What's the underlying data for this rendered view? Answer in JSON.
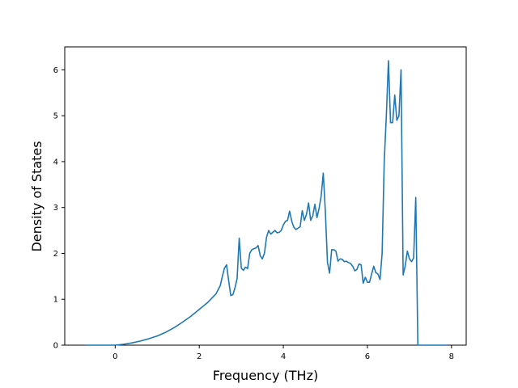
{
  "chart_data": {
    "type": "line",
    "title": "",
    "xlabel": "Frequency (THz)",
    "ylabel": "Density of States",
    "xlim": [
      -1.2,
      8.35
    ],
    "ylim": [
      0,
      6.5
    ],
    "xticks": [
      0,
      2,
      4,
      6,
      8
    ],
    "yticks": [
      0,
      1,
      2,
      3,
      4,
      5,
      6
    ],
    "grid": false,
    "legend": "none",
    "line_color": "#1f77b4",
    "series": [
      {
        "x": [
          -0.72,
          -0.3,
          0.0,
          0.2,
          0.4,
          0.6,
          0.8,
          1.0,
          1.2,
          1.4,
          1.6,
          1.8,
          2.0,
          2.2,
          2.4,
          2.5,
          2.55,
          2.6,
          2.65,
          2.7,
          2.75,
          2.8,
          2.85,
          2.9,
          2.95,
          3.0,
          3.05,
          3.1,
          3.15,
          3.2,
          3.25,
          3.3,
          3.35,
          3.4,
          3.45,
          3.5,
          3.55,
          3.6,
          3.65,
          3.7,
          3.75,
          3.8,
          3.85,
          3.9,
          3.95,
          4.0,
          4.05,
          4.1,
          4.15,
          4.2,
          4.25,
          4.3,
          4.35,
          4.4,
          4.45,
          4.5,
          4.55,
          4.6,
          4.65,
          4.7,
          4.75,
          4.8,
          4.85,
          4.9,
          4.95,
          5.0,
          5.05,
          5.1,
          5.15,
          5.2,
          5.25,
          5.3,
          5.35,
          5.4,
          5.45,
          5.5,
          5.55,
          5.6,
          5.65,
          5.7,
          5.75,
          5.8,
          5.85,
          5.9,
          5.95,
          6.0,
          6.05,
          6.1,
          6.15,
          6.2,
          6.25,
          6.3,
          6.35,
          6.4,
          6.45,
          6.5,
          6.55,
          6.6,
          6.65,
          6.7,
          6.75,
          6.8,
          6.85,
          6.9,
          6.95,
          7.0,
          7.05,
          7.1,
          7.15,
          7.2,
          7.25,
          7.5,
          7.9
        ],
        "y": [
          0,
          0,
          0,
          0.02,
          0.05,
          0.09,
          0.14,
          0.2,
          0.28,
          0.38,
          0.5,
          0.63,
          0.78,
          0.93,
          1.12,
          1.3,
          1.5,
          1.68,
          1.75,
          1.4,
          1.08,
          1.1,
          1.25,
          1.45,
          2.33,
          1.68,
          1.63,
          1.7,
          1.67,
          2.0,
          2.08,
          2.1,
          2.12,
          2.17,
          1.95,
          1.88,
          2.0,
          2.35,
          2.5,
          2.42,
          2.46,
          2.5,
          2.45,
          2.46,
          2.5,
          2.62,
          2.7,
          2.72,
          2.92,
          2.7,
          2.57,
          2.52,
          2.55,
          2.58,
          2.93,
          2.72,
          2.85,
          3.1,
          2.72,
          2.82,
          3.07,
          2.78,
          2.98,
          3.25,
          3.75,
          2.9,
          1.8,
          1.57,
          2.08,
          2.08,
          2.05,
          1.83,
          1.88,
          1.87,
          1.82,
          1.83,
          1.8,
          1.78,
          1.72,
          1.62,
          1.65,
          1.77,
          1.75,
          1.35,
          1.48,
          1.37,
          1.37,
          1.55,
          1.72,
          1.58,
          1.55,
          1.43,
          2.0,
          4.0,
          5.0,
          6.2,
          4.85,
          4.85,
          5.45,
          4.9,
          5.0,
          6.0,
          1.53,
          1.73,
          2.05,
          1.88,
          1.82,
          1.9,
          3.22,
          0,
          0,
          0,
          0
        ]
      }
    ]
  }
}
